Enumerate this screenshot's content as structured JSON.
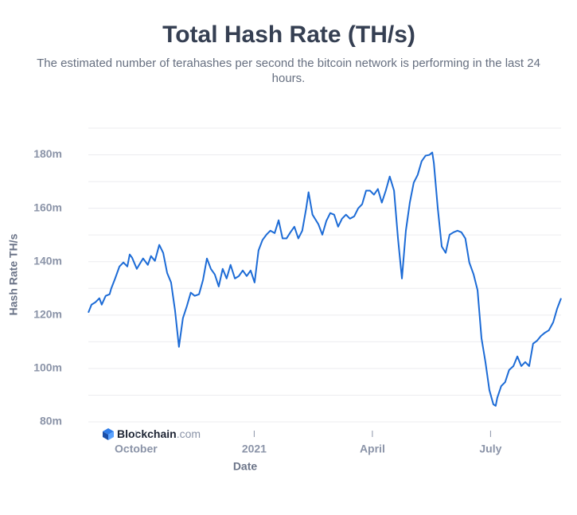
{
  "chart_data": {
    "type": "line",
    "title": "Total Hash Rate (TH/s)",
    "subtitle": "The estimated number of terahashes per second the bitcoin network is performing in the last 24 hours.",
    "ylabel": "Hash Rate TH/s",
    "xlabel": "Date",
    "watermark": {
      "brand": "Blockchain",
      "suffix": ".com"
    },
    "xlim": [
      8.79,
      20.79
    ],
    "xticks": [
      {
        "value": 10,
        "label": "October"
      },
      {
        "value": 13,
        "label": "2021"
      },
      {
        "value": 16,
        "label": "April"
      },
      {
        "value": 19,
        "label": "July"
      }
    ],
    "ylim": [
      80000000,
      190000000
    ],
    "yticks": [
      {
        "value": 80000000,
        "label": "80m"
      },
      {
        "value": 100000000,
        "label": "100m"
      },
      {
        "value": 120000000,
        "label": "120m"
      },
      {
        "value": 140000000,
        "label": "140m"
      },
      {
        "value": 160000000,
        "label": "160m"
      },
      {
        "value": 180000000,
        "label": "180m"
      }
    ],
    "ygrid": [
      80000000,
      90000000,
      100000000,
      110000000,
      120000000,
      130000000,
      140000000,
      150000000,
      160000000,
      170000000,
      180000000,
      190000000
    ],
    "grid": true,
    "series": [
      {
        "color": "#1c6bd6",
        "x": [
          8.79,
          8.87,
          8.97,
          9.07,
          9.13,
          9.23,
          9.33,
          9.37,
          9.47,
          9.58,
          9.68,
          9.78,
          9.84,
          9.9,
          10.02,
          10.08,
          10.18,
          10.3,
          10.38,
          10.48,
          10.59,
          10.69,
          10.79,
          10.89,
          10.99,
          11.09,
          11.19,
          11.29,
          11.39,
          11.49,
          11.6,
          11.7,
          11.8,
          11.9,
          12.0,
          12.1,
          12.2,
          12.3,
          12.4,
          12.51,
          12.61,
          12.71,
          12.81,
          12.91,
          13.01,
          13.11,
          13.21,
          13.31,
          13.41,
          13.52,
          13.62,
          13.72,
          13.82,
          13.92,
          14.02,
          14.12,
          14.22,
          14.32,
          14.38,
          14.48,
          14.63,
          14.73,
          14.83,
          14.93,
          15.03,
          15.13,
          15.23,
          15.33,
          15.43,
          15.54,
          15.64,
          15.74,
          15.84,
          15.94,
          16.04,
          16.14,
          16.24,
          16.34,
          16.44,
          16.55,
          16.65,
          16.75,
          16.85,
          16.95,
          17.05,
          17.15,
          17.25,
          17.35,
          17.45,
          17.52,
          17.56,
          17.66,
          17.76,
          17.86,
          17.96,
          18.06,
          18.16,
          18.26,
          18.36,
          18.46,
          18.57,
          18.67,
          18.77,
          18.87,
          18.97,
          19.07,
          19.13,
          19.17,
          19.27,
          19.37,
          19.47,
          19.58,
          19.68,
          19.78,
          19.88,
          19.98,
          20.08,
          20.18,
          20.28,
          20.38,
          20.48,
          20.59,
          20.69,
          20.79
        ],
        "values": [
          120900000,
          123900000,
          124800000,
          126300000,
          123900000,
          127200000,
          127800000,
          129900000,
          133700000,
          138200000,
          139700000,
          138200000,
          142700000,
          141500000,
          137300000,
          138800000,
          141200000,
          138800000,
          142100000,
          140300000,
          146300000,
          143300000,
          135800000,
          132200000,
          121800000,
          108100000,
          118800000,
          123300000,
          128400000,
          127200000,
          127800000,
          133100000,
          141200000,
          137300000,
          135200000,
          130700000,
          137300000,
          133700000,
          138800000,
          133700000,
          134600000,
          136700000,
          134600000,
          136700000,
          132200000,
          144200000,
          148100000,
          150100000,
          151600000,
          150700000,
          155500000,
          148700000,
          148700000,
          151000000,
          153100000,
          148700000,
          151600000,
          160000000,
          166000000,
          157600000,
          154000000,
          150100000,
          155200000,
          158200000,
          157600000,
          153100000,
          156100000,
          157600000,
          156100000,
          157000000,
          160000000,
          161500000,
          166600000,
          166600000,
          165100000,
          167200000,
          162100000,
          166600000,
          171900000,
          166600000,
          148700000,
          133700000,
          151600000,
          162100000,
          169600000,
          172500000,
          177600000,
          179700000,
          180000000,
          180900000,
          177000000,
          160000000,
          145700000,
          143300000,
          150100000,
          151000000,
          151600000,
          151000000,
          148700000,
          139700000,
          135200000,
          129300000,
          111300000,
          102400000,
          91900000,
          86600000,
          86000000,
          89000000,
          93400000,
          94900000,
          99400000,
          100900000,
          104500000,
          100900000,
          102400000,
          100900000,
          109300000,
          110400000,
          112200000,
          113400000,
          114300000,
          117300000,
          122400000,
          126300000
        ]
      }
    ]
  }
}
